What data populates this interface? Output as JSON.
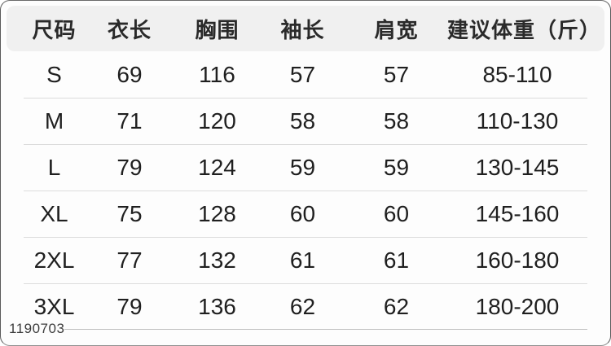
{
  "table": {
    "headers": [
      "尺码",
      "衣长",
      "胸围",
      "袖长",
      "肩宽",
      "建议体重（斤）"
    ],
    "rows": [
      [
        "S",
        "69",
        "116",
        "57",
        "57",
        "85-110"
      ],
      [
        "M",
        "71",
        "120",
        "58",
        "58",
        "110-130"
      ],
      [
        "L",
        "79",
        "124",
        "59",
        "59",
        "130-145"
      ],
      [
        "XL",
        "75",
        "128",
        "60",
        "60",
        "145-160"
      ],
      [
        "2XL",
        "77",
        "132",
        "61",
        "61",
        "160-180"
      ],
      [
        "3XL",
        "79",
        "136",
        "62",
        "62",
        "180-200"
      ]
    ]
  },
  "watermark": "1190703",
  "colors": {
    "header_bg": "#f0f0f0",
    "text": "#1f1f1f",
    "row_divider": "#dcdcdc",
    "bottom_line": "#bdbdbd",
    "card_border": "#6a6a6a",
    "watermark_text": "#3d3d3d"
  }
}
